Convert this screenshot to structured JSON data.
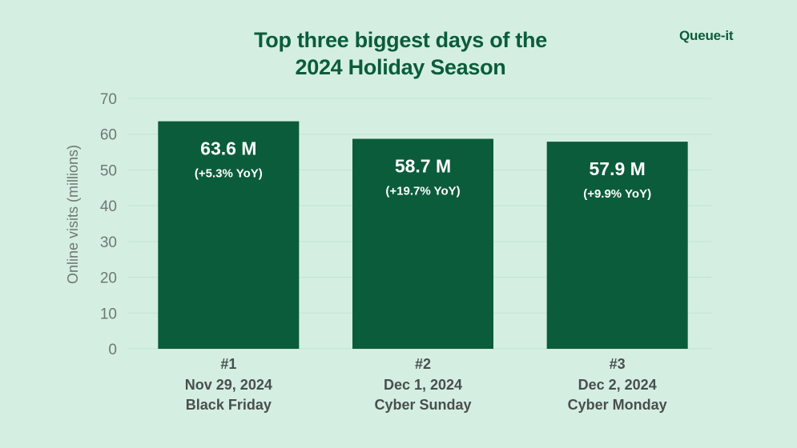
{
  "brand": {
    "logo_text": "Queue-it"
  },
  "colors": {
    "background": "#d4efe1",
    "bar": "#0b5c3b",
    "bar_label": "#ffffff",
    "title": "#0b5c3b",
    "axis_text": "#6f7873",
    "category_text": "#4a4f4c",
    "gridline": "#c2e3d2"
  },
  "chart_data": {
    "type": "bar",
    "title": "Top three biggest days of the 2024 Holiday Season",
    "title_lines": [
      "Top three biggest days of the",
      "2024 Holiday Season"
    ],
    "xlabel": "",
    "ylabel": "Online visits (millions)",
    "ylim": [
      0,
      70
    ],
    "yticks": [
      0,
      10,
      20,
      30,
      40,
      50,
      60,
      70
    ],
    "grid": true,
    "legend": "none",
    "categories": [
      {
        "rank": "#1",
        "date": "Nov 29, 2024",
        "name": "Black Friday"
      },
      {
        "rank": "#2",
        "date": "Dec 1, 2024",
        "name": "Cyber Sunday"
      },
      {
        "rank": "#3",
        "date": "Dec 2, 2024",
        "name": "Cyber Monday"
      }
    ],
    "values": [
      63.6,
      58.7,
      57.9
    ],
    "value_labels": [
      "63.6 M",
      "58.7 M",
      "57.9 M"
    ],
    "yoy_labels": [
      "(+5.3% YoY)",
      "(+19.7% YoY)",
      "(+9.9% YoY)"
    ]
  }
}
